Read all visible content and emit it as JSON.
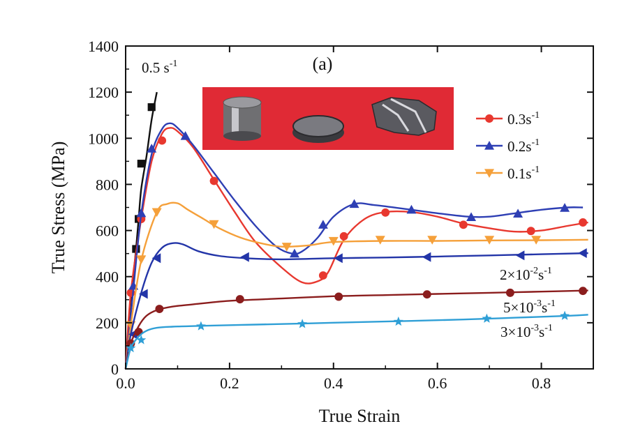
{
  "chart_data": {
    "type": "line",
    "panel_label": "(a)",
    "xlabel": "True Strain",
    "ylabel": "True Stress (MPa)",
    "xlim": [
      0,
      0.9
    ],
    "ylim": [
      0,
      1400
    ],
    "x_ticks": [
      "0.0",
      "0.2",
      "0.4",
      "0.6",
      "0.8"
    ],
    "y_ticks": [
      "0",
      "200",
      "400",
      "600",
      "800",
      "1000",
      "1200",
      "1400"
    ],
    "grid": false,
    "legend_position": "right",
    "inset_photo": "three cylindrical specimens on a red background",
    "series": [
      {
        "name": "0.5 s-1",
        "label_base": "0.5 s",
        "label_exp": "-1",
        "color": "#111111",
        "marker": "square",
        "points": [
          [
            0,
            0
          ],
          [
            0.005,
            120
          ],
          [
            0.01,
            250
          ],
          [
            0.015,
            400
          ],
          [
            0.02,
            520
          ],
          [
            0.025,
            650
          ],
          [
            0.03,
            780
          ],
          [
            0.04,
            920
          ],
          [
            0.05,
            1080
          ],
          [
            0.06,
            1200
          ]
        ],
        "markers": [
          [
            0.02,
            520
          ],
          [
            0.025,
            650
          ],
          [
            0.03,
            890
          ],
          [
            0.05,
            1135
          ]
        ]
      },
      {
        "name": "0.3s-1",
        "label_base": "0.3s",
        "label_exp": "-1",
        "color": "#e8382f",
        "marker": "circle",
        "points": [
          [
            0,
            0
          ],
          [
            0.01,
            330
          ],
          [
            0.03,
            650
          ],
          [
            0.05,
            900
          ],
          [
            0.07,
            1020
          ],
          [
            0.085,
            1045
          ],
          [
            0.1,
            1030
          ],
          [
            0.13,
            960
          ],
          [
            0.17,
            820
          ],
          [
            0.21,
            680
          ],
          [
            0.25,
            550
          ],
          [
            0.3,
            440
          ],
          [
            0.34,
            375
          ],
          [
            0.37,
            380
          ],
          [
            0.39,
            420
          ],
          [
            0.42,
            560
          ],
          [
            0.46,
            650
          ],
          [
            0.5,
            680
          ],
          [
            0.55,
            680
          ],
          [
            0.6,
            660
          ],
          [
            0.65,
            630
          ],
          [
            0.7,
            610
          ],
          [
            0.75,
            595
          ],
          [
            0.8,
            600
          ],
          [
            0.85,
            620
          ],
          [
            0.89,
            635
          ]
        ],
        "markers": [
          [
            0.01,
            330
          ],
          [
            0.03,
            650
          ],
          [
            0.07,
            990
          ],
          [
            0.17,
            815
          ],
          [
            0.38,
            405
          ],
          [
            0.42,
            575
          ],
          [
            0.5,
            678
          ],
          [
            0.65,
            625
          ],
          [
            0.78,
            598
          ],
          [
            0.88,
            635
          ]
        ]
      },
      {
        "name": "0.2s-1",
        "label_base": "0.2s",
        "label_exp": "-1",
        "color": "#2e3fb4",
        "marker": "triangle-up",
        "points": [
          [
            0,
            0
          ],
          [
            0.015,
            350
          ],
          [
            0.03,
            670
          ],
          [
            0.05,
            930
          ],
          [
            0.07,
            1040
          ],
          [
            0.085,
            1065
          ],
          [
            0.1,
            1045
          ],
          [
            0.13,
            970
          ],
          [
            0.17,
            850
          ],
          [
            0.21,
            730
          ],
          [
            0.25,
            620
          ],
          [
            0.29,
            530
          ],
          [
            0.32,
            500
          ],
          [
            0.34,
            510
          ],
          [
            0.37,
            570
          ],
          [
            0.4,
            660
          ],
          [
            0.44,
            715
          ],
          [
            0.48,
            710
          ],
          [
            0.55,
            690
          ],
          [
            0.6,
            675
          ],
          [
            0.66,
            660
          ],
          [
            0.7,
            660
          ],
          [
            0.75,
            675
          ],
          [
            0.8,
            690
          ],
          [
            0.85,
            700
          ],
          [
            0.88,
            700
          ]
        ],
        "markers": [
          [
            0.015,
            360
          ],
          [
            0.03,
            675
          ],
          [
            0.05,
            955
          ],
          [
            0.115,
            1010
          ],
          [
            0.325,
            500
          ],
          [
            0.38,
            625
          ],
          [
            0.44,
            715
          ],
          [
            0.55,
            690
          ],
          [
            0.665,
            658
          ],
          [
            0.755,
            673
          ],
          [
            0.845,
            698
          ]
        ]
      },
      {
        "name": "0.1s-1",
        "label_base": "0.1s",
        "label_exp": "-1",
        "color": "#f5a03a",
        "marker": "triangle-down",
        "points": [
          [
            0,
            0
          ],
          [
            0.01,
            190
          ],
          [
            0.03,
            470
          ],
          [
            0.06,
            680
          ],
          [
            0.08,
            715
          ],
          [
            0.1,
            718
          ],
          [
            0.12,
            690
          ],
          [
            0.15,
            650
          ],
          [
            0.18,
            610
          ],
          [
            0.22,
            570
          ],
          [
            0.26,
            545
          ],
          [
            0.3,
            530
          ],
          [
            0.35,
            535
          ],
          [
            0.4,
            550
          ],
          [
            0.5,
            555
          ],
          [
            0.6,
            555
          ],
          [
            0.7,
            557
          ],
          [
            0.8,
            558
          ],
          [
            0.89,
            560
          ]
        ],
        "markers": [
          [
            0.01,
            190
          ],
          [
            0.03,
            475
          ],
          [
            0.06,
            680
          ],
          [
            0.17,
            628
          ],
          [
            0.31,
            530
          ],
          [
            0.4,
            555
          ],
          [
            0.49,
            560
          ],
          [
            0.59,
            560
          ],
          [
            0.7,
            560
          ],
          [
            0.79,
            560
          ]
        ]
      },
      {
        "name": "2×10-2s-1",
        "label_base": "2×10",
        "label_exp": "-2",
        "label_suffix": "s",
        "label_suffix_exp": "-1",
        "color": "#2335a8",
        "marker": "triangle-left",
        "points": [
          [
            0,
            0
          ],
          [
            0.01,
            150
          ],
          [
            0.03,
            330
          ],
          [
            0.05,
            460
          ],
          [
            0.07,
            525
          ],
          [
            0.09,
            545
          ],
          [
            0.11,
            540
          ],
          [
            0.14,
            510
          ],
          [
            0.18,
            490
          ],
          [
            0.23,
            480
          ],
          [
            0.3,
            475
          ],
          [
            0.4,
            480
          ],
          [
            0.5,
            483
          ],
          [
            0.6,
            487
          ],
          [
            0.7,
            492
          ],
          [
            0.8,
            497
          ],
          [
            0.89,
            502
          ]
        ],
        "markers": [
          [
            0.015,
            150
          ],
          [
            0.035,
            325
          ],
          [
            0.06,
            480
          ],
          [
            0.23,
            485
          ],
          [
            0.41,
            480
          ],
          [
            0.58,
            485
          ],
          [
            0.76,
            492
          ],
          [
            0.88,
            502
          ]
        ]
      },
      {
        "name": "5×10-3s-1",
        "label_base": "5×10",
        "label_exp": "-3",
        "label_suffix": "s",
        "label_suffix_exp": "-1",
        "color": "#8b1d1d",
        "marker": "circle",
        "points": [
          [
            0,
            0
          ],
          [
            0.01,
            110
          ],
          [
            0.025,
            185
          ],
          [
            0.04,
            230
          ],
          [
            0.06,
            255
          ],
          [
            0.09,
            270
          ],
          [
            0.13,
            280
          ],
          [
            0.2,
            295
          ],
          [
            0.3,
            305
          ],
          [
            0.4,
            315
          ],
          [
            0.5,
            320
          ],
          [
            0.6,
            325
          ],
          [
            0.7,
            330
          ],
          [
            0.8,
            335
          ],
          [
            0.89,
            340
          ]
        ],
        "markers": [
          [
            0.01,
            110
          ],
          [
            0.025,
            160
          ],
          [
            0.065,
            260
          ],
          [
            0.22,
            302
          ],
          [
            0.41,
            313
          ],
          [
            0.58,
            323
          ],
          [
            0.74,
            330
          ],
          [
            0.88,
            338
          ]
        ]
      },
      {
        "name": "3×10-3s-1",
        "label_base": "3×10",
        "label_exp": "-3",
        "label_suffix": "s",
        "label_suffix_exp": "-1",
        "color": "#2f9fd6",
        "marker": "star",
        "points": [
          [
            0,
            0
          ],
          [
            0.01,
            90
          ],
          [
            0.025,
            140
          ],
          [
            0.04,
            165
          ],
          [
            0.06,
            178
          ],
          [
            0.09,
            183
          ],
          [
            0.15,
            187
          ],
          [
            0.25,
            192
          ],
          [
            0.35,
            197
          ],
          [
            0.45,
            203
          ],
          [
            0.55,
            208
          ],
          [
            0.65,
            214
          ],
          [
            0.75,
            222
          ],
          [
            0.85,
            230
          ],
          [
            0.89,
            235
          ]
        ],
        "markers": [
          [
            0.01,
            90
          ],
          [
            0.03,
            125
          ],
          [
            0.145,
            185
          ],
          [
            0.34,
            195
          ],
          [
            0.525,
            205
          ],
          [
            0.695,
            218
          ],
          [
            0.845,
            230
          ]
        ]
      }
    ]
  }
}
